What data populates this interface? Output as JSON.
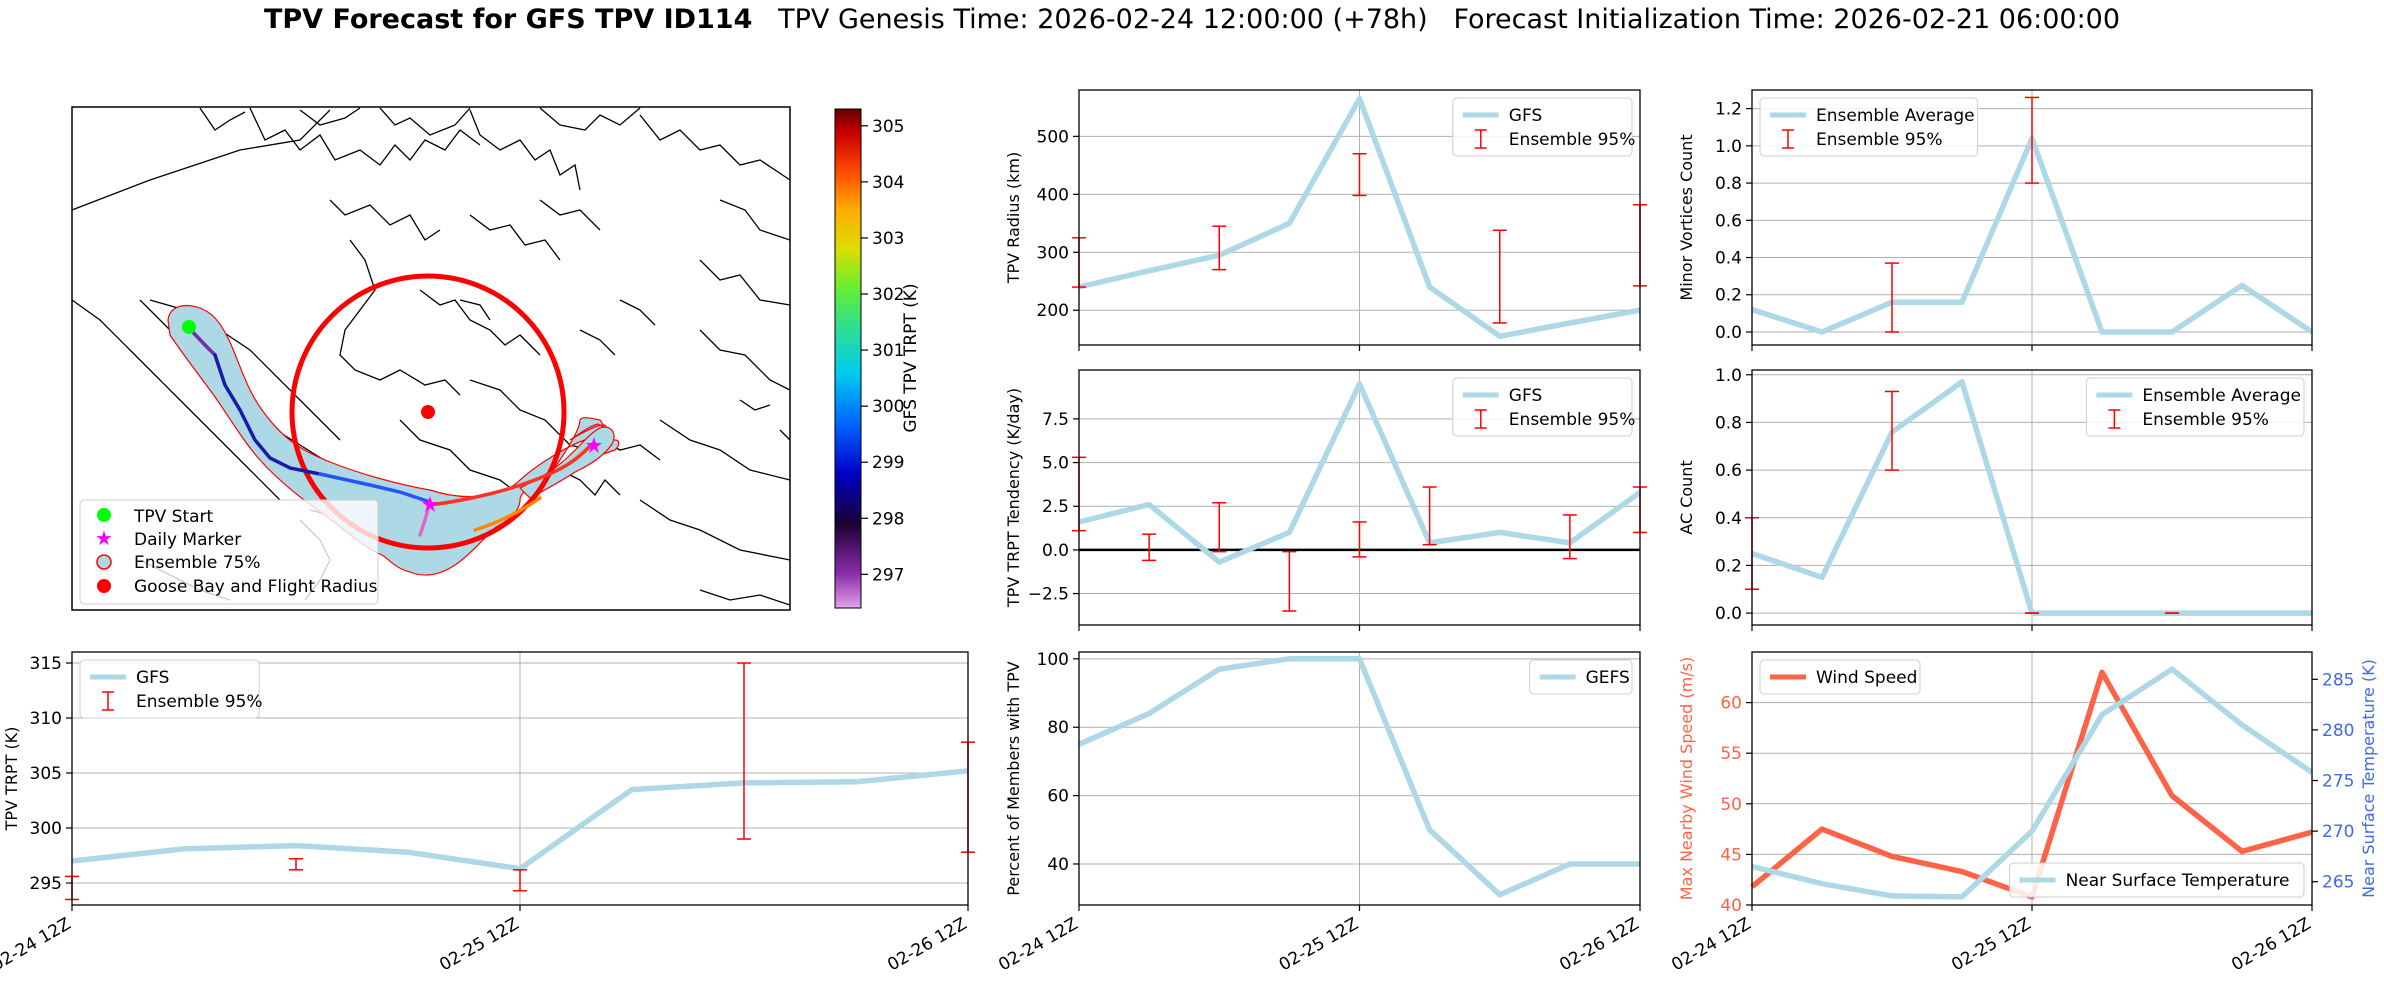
{
  "title": {
    "bold": "TPV Forecast for GFS TPV ID114",
    "genesis": "TPV Genesis Time: 2026-02-24 12:00:00 (+78h)",
    "init": "Forecast Initialization Time: 2026-02-21 06:00:00"
  },
  "colors": {
    "gfs": "#add8e6",
    "error_bar": "#ff0000",
    "wind": "#ff6347",
    "temp_axis": "#4169e1",
    "zero_line": "#000000",
    "grid": "#b0b0b0"
  },
  "map": {
    "legend": [
      "TPV Start",
      "Daily Marker",
      "Ensemble 75%",
      "Goose Bay and Flight Radius"
    ],
    "legend_colors": [
      "#00ff00",
      "#ff00ff",
      "#add8e6",
      "#ff0000"
    ],
    "colorbar": {
      "label": "GFS TPV TRPT (K)",
      "ticks": [
        297,
        298,
        299,
        300,
        301,
        302,
        303,
        304,
        305
      ],
      "range": [
        296.4,
        305.3
      ]
    }
  },
  "chart_data": [
    {
      "id": "trpt",
      "type": "line",
      "x": [
        "02-24 12Z",
        "02-24 18Z",
        "02-25 00Z",
        "02-25 06Z",
        "02-25 12Z",
        "02-25 18Z",
        "02-26 00Z",
        "02-26 06Z",
        "02-26 12Z"
      ],
      "series": [
        {
          "name": "GFS",
          "values": [
            297.0,
            298.1,
            298.4,
            297.8,
            296.3,
            303.5,
            304.1,
            304.2,
            305.2
          ]
        }
      ],
      "error_bars": {
        "name": "Ensemble 95%",
        "x": [
          "02-24 12Z",
          "02-25 00Z",
          "02-25 12Z",
          "02-26 00Z",
          "02-26 12Z"
        ],
        "low": [
          293.5,
          296.2,
          294.3,
          299.0,
          297.8
        ],
        "high": [
          295.6,
          297.2,
          296.2,
          315.0,
          307.8
        ]
      },
      "ylabel": "TPV TRPT (K)",
      "ylim": [
        293,
        316
      ],
      "yticks": [
        295,
        300,
        305,
        310,
        315
      ],
      "xticks": [
        "02-24 12Z",
        "02-25 12Z",
        "02-26 12Z"
      ],
      "legend": "top-left",
      "grid": true
    },
    {
      "id": "radius",
      "type": "line",
      "x": [
        "02-24 12Z",
        "02-24 18Z",
        "02-25 00Z",
        "02-25 06Z",
        "02-25 12Z",
        "02-25 18Z",
        "02-26 00Z",
        "02-26 06Z",
        "02-26 12Z"
      ],
      "series": [
        {
          "name": "GFS",
          "values": [
            240,
            268,
            295,
            350,
            565,
            240,
            155,
            178,
            200
          ]
        }
      ],
      "error_bars": {
        "name": "Ensemble 95%",
        "x": [
          "02-24 12Z",
          "02-25 00Z",
          "02-25 12Z",
          "02-26 00Z",
          "02-26 12Z"
        ],
        "low": [
          240,
          270,
          398,
          178,
          242
        ],
        "high": [
          325,
          345,
          470,
          338,
          382
        ]
      },
      "ylabel": "TPV Radius (km)",
      "ylim": [
        140,
        580
      ],
      "yticks": [
        200,
        300,
        400,
        500
      ],
      "xticks": [],
      "legend": "top-right",
      "grid": true
    },
    {
      "id": "tendency",
      "type": "line",
      "x": [
        "02-24 12Z",
        "02-24 18Z",
        "02-25 00Z",
        "02-25 06Z",
        "02-25 12Z",
        "02-25 18Z",
        "02-26 00Z",
        "02-26 06Z",
        "02-26 12Z"
      ],
      "series": [
        {
          "name": "GFS",
          "values": [
            1.6,
            2.6,
            -0.7,
            1.0,
            9.5,
            0.4,
            1.0,
            0.4,
            3.3
          ]
        }
      ],
      "error_bars": {
        "name": "Ensemble 95%",
        "x": [
          "02-24 12Z",
          "02-24 18Z",
          "02-25 00Z",
          "02-25 06Z",
          "02-25 12Z",
          "02-25 18Z",
          "02-26 06Z",
          "02-26 12Z"
        ],
        "low": [
          1.1,
          -0.6,
          -0.1,
          -3.5,
          -0.4,
          0.3,
          -0.5,
          1.0
        ],
        "high": [
          5.3,
          0.9,
          2.7,
          -0.1,
          1.6,
          3.6,
          2.0,
          3.6
        ]
      },
      "ylabel": "TPV TRPT Tendency (K/day)",
      "ylim": [
        -4.3,
        10.3
      ],
      "yticks": [
        -2.5,
        0.0,
        2.5,
        5.0,
        7.5
      ],
      "ytick_labels": [
        "−2.5",
        "0.0",
        "2.5",
        "5.0",
        "7.5"
      ],
      "zero_line": true,
      "xticks": [],
      "legend": "top-right",
      "grid": true
    },
    {
      "id": "members",
      "type": "line",
      "x": [
        "02-24 12Z",
        "02-24 18Z",
        "02-25 00Z",
        "02-25 06Z",
        "02-25 12Z",
        "02-25 18Z",
        "02-26 00Z",
        "02-26 06Z",
        "02-26 12Z"
      ],
      "series": [
        {
          "name": "GEFS",
          "values": [
            75,
            84,
            97,
            100,
            100,
            50,
            31,
            40,
            40
          ]
        }
      ],
      "ylabel": "Percent of Members with TPV",
      "ylim": [
        28,
        102
      ],
      "yticks": [
        40,
        60,
        80,
        100
      ],
      "xticks": [
        "02-24 12Z",
        "02-25 12Z",
        "02-26 12Z"
      ],
      "legend": "top-right",
      "grid": true
    },
    {
      "id": "minor",
      "type": "line",
      "x": [
        "02-24 12Z",
        "02-24 18Z",
        "02-25 00Z",
        "02-25 06Z",
        "02-25 12Z",
        "02-25 18Z",
        "02-26 00Z",
        "02-26 06Z",
        "02-26 12Z"
      ],
      "series": [
        {
          "name": "Ensemble Average",
          "values": [
            0.12,
            0.0,
            0.16,
            0.16,
            1.04,
            0.0,
            0.0,
            0.25,
            0.0
          ]
        }
      ],
      "error_bars": {
        "name": "Ensemble 95%",
        "x": [
          "02-25 00Z",
          "02-25 12Z"
        ],
        "low": [
          0.0,
          0.8
        ],
        "high": [
          0.37,
          1.26
        ]
      },
      "ylabel": "Minor Vortices Count",
      "ylim": [
        -0.07,
        1.3
      ],
      "yticks": [
        0.0,
        0.2,
        0.4,
        0.6,
        0.8,
        1.0,
        1.2
      ],
      "ytick_labels": [
        "0.0",
        "0.2",
        "0.4",
        "0.6",
        "0.8",
        "1.0",
        "1.2"
      ],
      "xticks": [],
      "legend": "top-left",
      "grid": true
    },
    {
      "id": "ac",
      "type": "line",
      "x": [
        "02-24 12Z",
        "02-24 18Z",
        "02-25 00Z",
        "02-25 06Z",
        "02-25 12Z",
        "02-25 18Z",
        "02-26 00Z",
        "02-26 06Z",
        "02-26 12Z"
      ],
      "series": [
        {
          "name": "Ensemble Average",
          "values": [
            0.25,
            0.15,
            0.76,
            0.97,
            0.0,
            0.0,
            0.0,
            0.0,
            0.0
          ]
        }
      ],
      "error_bars": {
        "name": "Ensemble 95%",
        "x": [
          "02-24 12Z",
          "02-25 00Z",
          "02-25 12Z",
          "02-26 00Z"
        ],
        "low": [
          0.1,
          0.6,
          0.0,
          0.0
        ],
        "high": [
          0.4,
          0.93,
          0.0,
          0.0
        ]
      },
      "ylabel": "AC Count",
      "ylim": [
        -0.05,
        1.02
      ],
      "yticks": [
        0.0,
        0.2,
        0.4,
        0.6,
        0.8,
        1.0
      ],
      "ytick_labels": [
        "0.0",
        "0.2",
        "0.4",
        "0.6",
        "0.8",
        "1.0"
      ],
      "xticks": [],
      "legend": "top-right",
      "grid": true
    },
    {
      "id": "wind",
      "type": "line",
      "x": [
        "02-24 12Z",
        "02-24 18Z",
        "02-25 00Z",
        "02-25 06Z",
        "02-25 12Z",
        "02-25 18Z",
        "02-26 00Z",
        "02-26 06Z",
        "02-26 12Z"
      ],
      "series": [
        {
          "name": "Wind Speed",
          "axis": "left",
          "values": [
            41.8,
            47.5,
            44.8,
            43.3,
            40.8,
            63.0,
            50.8,
            45.3,
            47.2
          ]
        },
        {
          "name": "Near Surface Temperature",
          "axis": "right",
          "values": [
            266.5,
            264.8,
            263.6,
            263.5,
            270.0,
            281.5,
            286.0,
            280.5,
            275.8
          ]
        }
      ],
      "ylabel": "Max Nearby Wind Speed (m/s)",
      "ylim": [
        40,
        65
      ],
      "yticks": [
        40,
        45,
        50,
        55,
        60
      ],
      "y2label": "Near Surface Temperature (K)",
      "y2lim": [
        262.7,
        287.7
      ],
      "y2ticks": [
        265,
        270,
        275,
        280,
        285
      ],
      "xticks": [
        "02-24 12Z",
        "02-25 12Z",
        "02-26 12Z"
      ],
      "legend": "top-left / bottom-right",
      "grid": true
    }
  ]
}
